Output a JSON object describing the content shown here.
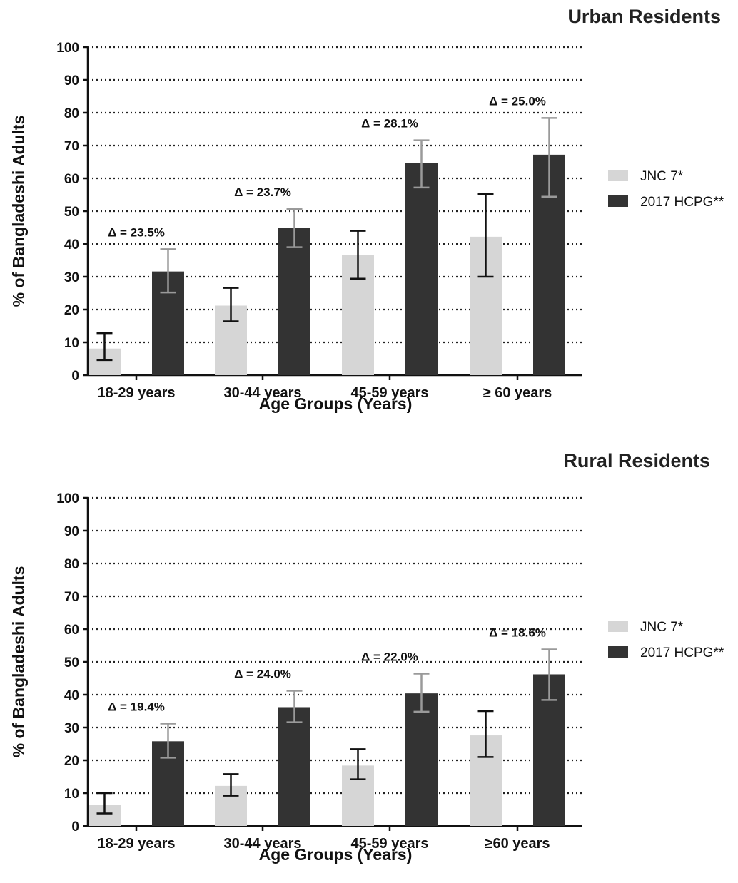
{
  "chart_data": [
    {
      "type": "bar",
      "title": "Urban  Residents",
      "xlabel": "Age Groups (Years)",
      "ylabel": "% of Bangladeshi Adults",
      "ylim": [
        0,
        100
      ],
      "yticks": [
        "0",
        "10",
        "20",
        "30",
        "40",
        "50",
        "60",
        "70",
        "80",
        "90",
        "100"
      ],
      "grid": "horizontal dotted",
      "legend_position": "right",
      "categories": [
        "18-29 years",
        "30-44 years",
        "45-59 years",
        "≥ 60 years"
      ],
      "series": [
        {
          "name": "JNC 7*",
          "color": "#d6d6d6",
          "errorbar_color": "#111111",
          "values": [
            8.1,
            21.2,
            36.6,
            42.2
          ],
          "error_low": [
            4.6,
            16.4,
            29.4,
            30.0
          ],
          "error_high": [
            12.8,
            26.6,
            44.0,
            55.2
          ]
        },
        {
          "name": "2017 HCPG**",
          "color": "#333333",
          "errorbar_color": "#9a9a9a",
          "values": [
            31.6,
            44.9,
            64.7,
            67.2
          ],
          "error_low": [
            25.2,
            39.0,
            57.2,
            54.4
          ],
          "error_high": [
            38.4,
            50.6,
            71.6,
            78.4
          ]
        }
      ],
      "annotations": [
        "Δ = 23.5%",
        "Δ = 23.7%",
        "Δ = 28.1%",
        "Δ = 25.0%"
      ]
    },
    {
      "type": "bar",
      "title": "Rural Residents",
      "xlabel": "Age Groups (Years)",
      "ylabel": "% of Bangladeshi Adults",
      "ylim": [
        0,
        100
      ],
      "yticks": [
        "0",
        "10",
        "20",
        "30",
        "40",
        "50",
        "60",
        "70",
        "80",
        "90",
        "100"
      ],
      "grid": "horizontal dotted",
      "legend_position": "right",
      "categories": [
        "18-29 years",
        "30-44 years",
        "45-59 years",
        "≥60 years"
      ],
      "series": [
        {
          "name": "JNC 7*",
          "color": "#d6d6d6",
          "errorbar_color": "#111111",
          "values": [
            6.4,
            12.2,
            18.4,
            27.6
          ],
          "error_low": [
            3.8,
            9.2,
            14.2,
            21.0
          ],
          "error_high": [
            10.0,
            15.8,
            23.4,
            35.0
          ]
        },
        {
          "name": "2017 HCPG**",
          "color": "#333333",
          "errorbar_color": "#9a9a9a",
          "values": [
            25.8,
            36.2,
            40.4,
            46.2
          ],
          "error_low": [
            20.8,
            31.6,
            34.8,
            38.4
          ],
          "error_high": [
            31.2,
            41.2,
            46.4,
            53.8
          ]
        }
      ],
      "annotations": [
        "Δ = 19.4%",
        "Δ = 24.0%",
        "Δ = 22.0%",
        "Δ = 18.6%"
      ]
    }
  ]
}
